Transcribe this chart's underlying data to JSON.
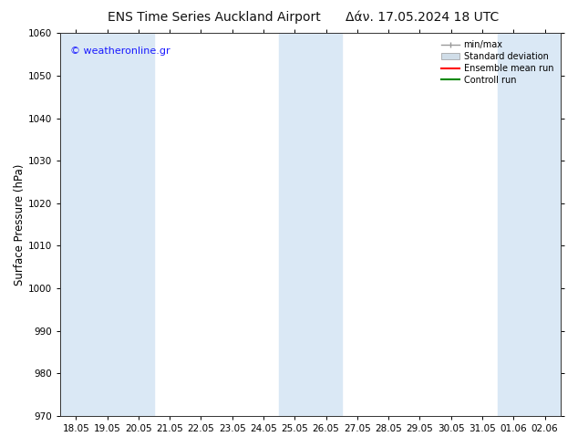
{
  "title_left": "ENS Time Series Auckland Airport",
  "title_right": "Δάν. 17.05.2024 18 UTC",
  "ylabel": "Surface Pressure (hPa)",
  "ylim": [
    970,
    1060
  ],
  "yticks": [
    970,
    980,
    990,
    1000,
    1010,
    1020,
    1030,
    1040,
    1050,
    1060
  ],
  "x_labels": [
    "18.05",
    "19.05",
    "20.05",
    "21.05",
    "22.05",
    "23.05",
    "24.05",
    "25.05",
    "26.05",
    "27.05",
    "28.05",
    "29.05",
    "30.05",
    "31.05",
    "01.06",
    "02.06"
  ],
  "watermark": "© weatheronline.gr",
  "watermark_color": "#1a1aff",
  "band_color": "#dae8f5",
  "bg_color": "#ffffff",
  "legend_items": [
    {
      "label": "min/max",
      "color": "#aabbcc",
      "type": "errorbar"
    },
    {
      "label": "Standard deviation",
      "color": "#ccddee",
      "type": "box"
    },
    {
      "label": "Ensemble mean run",
      "color": "#ff0000",
      "type": "line"
    },
    {
      "label": "Controll run",
      "color": "#008800",
      "type": "line"
    }
  ],
  "shaded_x": [
    0,
    1,
    2,
    7,
    8,
    14,
    15
  ],
  "title_fontsize": 10,
  "tick_fontsize": 7.5,
  "ylabel_fontsize": 8.5
}
